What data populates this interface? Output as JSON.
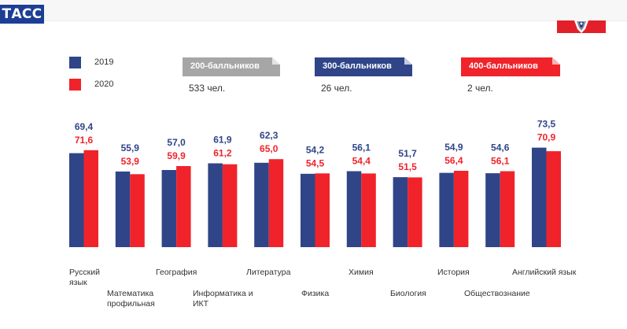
{
  "header": {
    "logo_text": "ТАСС",
    "emblem_icon": "coat-of-arms-icon"
  },
  "legend": [
    {
      "label": "2019",
      "color": "#2f4588"
    },
    {
      "label": "2020",
      "color": "#f0232b"
    }
  ],
  "summary_tags": [
    {
      "label": "200-балльников",
      "count": "533 чел.",
      "color": "#a6a6a6"
    },
    {
      "label": "300-балльников",
      "count": "26 чел.",
      "color": "#2f4588"
    },
    {
      "label": "400-балльников",
      "count": "2 чел.",
      "color": "#f0232b"
    }
  ],
  "chart_data": {
    "type": "bar",
    "categories": [
      "Русский язык",
      "Математика профильная",
      "География",
      "Информатика и ИКТ",
      "Литература",
      "Физика",
      "Химия",
      "Биология",
      "История",
      "Обществознание",
      "Английский язык"
    ],
    "series": [
      {
        "name": "2019",
        "color": "#2f4588",
        "values": [
          69.4,
          55.9,
          57.0,
          61.9,
          62.3,
          54.2,
          56.1,
          51.7,
          54.9,
          54.6,
          73.5
        ],
        "labels": [
          "69,4",
          "55,9",
          "57,0",
          "61,9",
          "62,3",
          "54,2",
          "56,1",
          "51,7",
          "54,9",
          "54,6",
          "73,5"
        ]
      },
      {
        "name": "2020",
        "color": "#f0232b",
        "values": [
          71.6,
          53.9,
          59.9,
          61.2,
          65.0,
          54.5,
          54.4,
          51.5,
          56.4,
          56.1,
          70.9
        ],
        "labels": [
          "71,6",
          "53,9",
          "59,9",
          "61,2",
          "65,0",
          "54,5",
          "54,4",
          "51,5",
          "56,4",
          "56,1",
          "70,9"
        ]
      }
    ],
    "category_label_lines": [
      [
        "Русский",
        "язык"
      ],
      [
        "Математика",
        "профильная"
      ],
      [
        "География"
      ],
      [
        "Информатика и",
        "ИКТ"
      ],
      [
        "Литература"
      ],
      [
        "Физика"
      ],
      [
        "Химия"
      ],
      [
        "Биология"
      ],
      [
        "История"
      ],
      [
        "Обществознание"
      ],
      [
        "Английский язык"
      ]
    ],
    "ylim": [
      0,
      80
    ],
    "grid": false,
    "legend_position": "top-left"
  }
}
